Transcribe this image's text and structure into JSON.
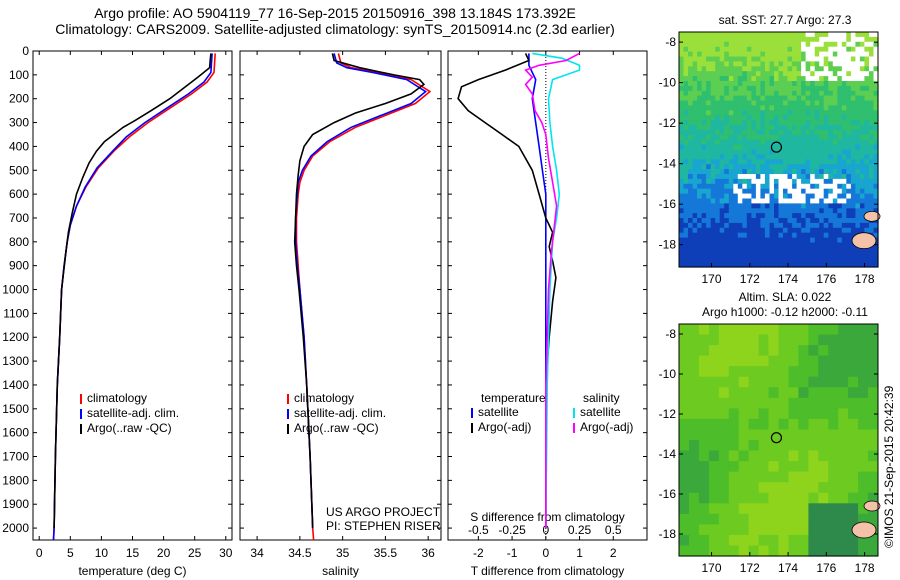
{
  "header": {
    "line1": "Argo profile: AO 5904119_77 16-Sep-2015 20150916_398 13.184S 173.392E",
    "line2": "Climatology: CARS2009. Satellite-adjusted climatology: synTS_20150914.nc (2.3d earlier)"
  },
  "colors": {
    "climatology": "#ff0000",
    "satellite": "#0000ff",
    "argo": "#000000",
    "salinity_satellite": "#00e5ee",
    "salinity_argo": "#ff00ff"
  },
  "chart_data": [
    {
      "type": "line",
      "panel": "temperature",
      "xlabel": "temperature (deg C)",
      "ylabel": "",
      "xlim": [
        -1,
        31
      ],
      "ylim": [
        2050,
        0
      ],
      "xticks": [
        0,
        5,
        10,
        15,
        20,
        25,
        30
      ],
      "xtick_labels": [
        "0",
        "5",
        "10",
        "15",
        "20",
        "25",
        "30"
      ],
      "yticks": [
        0,
        100,
        200,
        300,
        400,
        500,
        600,
        700,
        800,
        900,
        1000,
        1100,
        1200,
        1300,
        1400,
        1500,
        1600,
        1700,
        1800,
        1900,
        2000
      ],
      "ytick_labels": [
        "0",
        "100",
        "200",
        "300",
        "400",
        "500",
        "600",
        "700",
        "800",
        "900",
        "1000",
        "1100",
        "1200",
        "1300",
        "1400",
        "1500",
        "1600",
        "1700",
        "1800",
        "1900",
        "2000"
      ],
      "legend": [
        "climatology",
        "satellite-adj. clim.",
        "Argo(..raw -QC)"
      ],
      "series": [
        {
          "name": "climatology",
          "color_key": "climatology",
          "points": [
            [
              28.3,
              10
            ],
            [
              28.2,
              50
            ],
            [
              28.1,
              90
            ],
            [
              27.0,
              130
            ],
            [
              24.5,
              180
            ],
            [
              21.0,
              240
            ],
            [
              17.5,
              300
            ],
            [
              14.5,
              360
            ],
            [
              12.0,
              420
            ],
            [
              9.5,
              490
            ],
            [
              7.5,
              570
            ],
            [
              6.0,
              650
            ],
            [
              5.0,
              730
            ],
            [
              4.5,
              800
            ],
            [
              4.0,
              900
            ],
            [
              3.6,
              1000
            ],
            [
              3.3,
              1200
            ],
            [
              2.9,
              1400
            ],
            [
              2.6,
              1700
            ],
            [
              2.4,
              2000
            ],
            [
              2.3,
              2050
            ]
          ]
        },
        {
          "name": "satellite-adj. clim.",
          "color_key": "satellite",
          "points": [
            [
              27.8,
              10
            ],
            [
              27.7,
              50
            ],
            [
              27.6,
              90
            ],
            [
              26.5,
              130
            ],
            [
              24.0,
              180
            ],
            [
              20.5,
              240
            ],
            [
              17.0,
              300
            ],
            [
              14.0,
              360
            ],
            [
              11.8,
              420
            ],
            [
              9.3,
              490
            ],
            [
              7.4,
              570
            ],
            [
              6.0,
              650
            ],
            [
              5.0,
              730
            ],
            [
              4.5,
              800
            ],
            [
              4.0,
              900
            ],
            [
              3.6,
              1000
            ],
            [
              3.3,
              1200
            ],
            [
              2.9,
              1400
            ],
            [
              2.6,
              1700
            ],
            [
              2.4,
              2000
            ],
            [
              2.3,
              2050
            ]
          ]
        },
        {
          "name": "Argo(..raw -QC)",
          "color_key": "argo",
          "points": [
            [
              27.6,
              10
            ],
            [
              27.5,
              40
            ],
            [
              27.4,
              70
            ],
            [
              25.5,
              110
            ],
            [
              23.5,
              150
            ],
            [
              21.0,
              200
            ],
            [
              18.0,
              250
            ],
            [
              15.5,
              290
            ],
            [
              13.5,
              320
            ],
            [
              12.0,
              350
            ],
            [
              10.5,
              380
            ],
            [
              9.2,
              420
            ],
            [
              8.0,
              470
            ],
            [
              7.0,
              530
            ],
            [
              6.0,
              600
            ],
            [
              5.3,
              680
            ],
            [
              4.7,
              760
            ],
            [
              4.3,
              840
            ],
            [
              3.9,
              930
            ],
            [
              3.6,
              1000
            ],
            [
              3.3,
              1200
            ],
            [
              2.9,
              1400
            ],
            [
              2.6,
              1700
            ],
            [
              2.4,
              2000
            ]
          ]
        }
      ]
    },
    {
      "type": "line",
      "panel": "salinity",
      "xlabel": "salinity",
      "xlim": [
        33.8,
        36.15
      ],
      "ylim": [
        2050,
        0
      ],
      "xticks": [
        34,
        34.5,
        35,
        35.5,
        36
      ],
      "xtick_labels": [
        "34",
        "34.5",
        "35",
        "35.5",
        "36"
      ],
      "legend": [
        "climatology",
        "satellite-adj. clim.",
        "Argo(..raw -QC)"
      ],
      "annotation": [
        "US ARGO PROJECT",
        "PI: STEPHEN RISER"
      ],
      "series": [
        {
          "name": "climatology",
          "color_key": "climatology",
          "points": [
            [
              34.95,
              10
            ],
            [
              34.98,
              50
            ],
            [
              35.1,
              70
            ],
            [
              35.4,
              90
            ],
            [
              35.8,
              120
            ],
            [
              36.02,
              170
            ],
            [
              35.85,
              220
            ],
            [
              35.5,
              270
            ],
            [
              35.15,
              320
            ],
            [
              34.85,
              380
            ],
            [
              34.65,
              440
            ],
            [
              34.55,
              500
            ],
            [
              34.5,
              550
            ],
            [
              34.48,
              600
            ],
            [
              34.46,
              700
            ],
            [
              34.46,
              800
            ],
            [
              34.48,
              900
            ],
            [
              34.5,
              1000
            ],
            [
              34.55,
              1200
            ],
            [
              34.58,
              1400
            ],
            [
              34.62,
              1700
            ],
            [
              34.65,
              2000
            ],
            [
              34.66,
              2050
            ]
          ]
        },
        {
          "name": "satellite-adj. clim.",
          "color_key": "satellite",
          "points": [
            [
              34.9,
              10
            ],
            [
              34.93,
              50
            ],
            [
              35.05,
              70
            ],
            [
              35.35,
              90
            ],
            [
              35.75,
              120
            ],
            [
              35.97,
              170
            ],
            [
              35.8,
              220
            ],
            [
              35.45,
              270
            ],
            [
              35.1,
              320
            ],
            [
              34.82,
              380
            ],
            [
              34.63,
              440
            ],
            [
              34.53,
              500
            ],
            [
              34.48,
              550
            ],
            [
              34.47,
              600
            ],
            [
              34.45,
              700
            ],
            [
              34.45,
              800
            ],
            [
              34.47,
              900
            ],
            [
              34.5,
              1000
            ],
            [
              34.55,
              1200
            ],
            [
              34.58,
              1400
            ],
            [
              34.62,
              1700
            ],
            [
              34.65,
              2000
            ]
          ]
        },
        {
          "name": "Argo(..raw -QC)",
          "color_key": "argo",
          "points": [
            [
              34.88,
              10
            ],
            [
              34.9,
              40
            ],
            [
              35.2,
              70
            ],
            [
              35.6,
              100
            ],
            [
              35.9,
              120
            ],
            [
              35.95,
              140
            ],
            [
              35.8,
              180
            ],
            [
              35.5,
              220
            ],
            [
              35.15,
              260
            ],
            [
              34.9,
              300
            ],
            [
              34.65,
              350
            ],
            [
              34.55,
              400
            ],
            [
              34.5,
              460
            ],
            [
              34.48,
              520
            ],
            [
              34.46,
              600
            ],
            [
              34.45,
              700
            ],
            [
              34.44,
              800
            ],
            [
              34.46,
              900
            ],
            [
              34.49,
              1000
            ],
            [
              34.54,
              1200
            ],
            [
              34.58,
              1400
            ],
            [
              34.62,
              1700
            ],
            [
              34.65,
              2000
            ]
          ]
        }
      ]
    },
    {
      "type": "line",
      "panel": "difference",
      "xlabel": "T difference from climatology",
      "xlabel_top": "S difference from climatology",
      "xlim": [
        -2.9,
        3.0
      ],
      "ylim": [
        2050,
        0
      ],
      "xticks": [
        -2,
        -1,
        0,
        1,
        2
      ],
      "xtick_labels": [
        "-2",
        "-1",
        "0",
        "1",
        "2"
      ],
      "xticks_top": [
        -0.5,
        -0.25,
        0,
        0.25,
        0.5
      ],
      "xtick_labels_top": [
        "-0.5",
        "-0.25",
        "0",
        "0.25",
        "0.5"
      ],
      "s_scale": 4,
      "legend": {
        "temperature": [
          "satellite",
          "Argo(-adj)"
        ],
        "salinity": [
          "satellite",
          "Argo(-adj)"
        ],
        "headers": [
          "temperature",
          "salinity"
        ]
      },
      "series": [
        {
          "name": "satellite",
          "group": "temperature",
          "color_key": "satellite",
          "points": [
            [
              -0.5,
              10
            ],
            [
              -0.5,
              60
            ],
            [
              -0.3,
              120
            ],
            [
              -0.4,
              200
            ],
            [
              -0.3,
              300
            ],
            [
              -0.2,
              400
            ],
            [
              -0.1,
              500
            ],
            [
              0.0,
              600
            ],
            [
              0.0,
              700
            ],
            [
              0.0,
              800
            ],
            [
              0.0,
              1000
            ],
            [
              0.0,
              1400
            ],
            [
              0.0,
              2000
            ]
          ]
        },
        {
          "name": "Argo(-adj)",
          "group": "temperature",
          "color_key": "argo",
          "points": [
            [
              -0.6,
              10
            ],
            [
              -0.5,
              40
            ],
            [
              -1.2,
              80
            ],
            [
              -2.0,
              120
            ],
            [
              -2.5,
              150
            ],
            [
              -2.6,
              200
            ],
            [
              -2.3,
              250
            ],
            [
              -1.8,
              300
            ],
            [
              -1.3,
              350
            ],
            [
              -0.8,
              400
            ],
            [
              -0.4,
              500
            ],
            [
              -0.2,
              600
            ],
            [
              0.0,
              700
            ],
            [
              0.2,
              760
            ],
            [
              0.1,
              820
            ],
            [
              0.2,
              880
            ],
            [
              0.3,
              950
            ],
            [
              0.2,
              1050
            ],
            [
              0.1,
              1200
            ],
            [
              0.0,
              1400
            ],
            [
              0.0,
              1700
            ],
            [
              0.0,
              2000
            ]
          ]
        },
        {
          "name": "satellite",
          "group": "salinity",
          "color_key": "salinity_satellite",
          "points": [
            [
              -0.1,
              10
            ],
            [
              0.12,
              30
            ],
            [
              0.25,
              60
            ],
            [
              0.25,
              80
            ],
            [
              0.05,
              120
            ],
            [
              0.02,
              200
            ],
            [
              0.03,
              300
            ],
            [
              0.05,
              400
            ],
            [
              0.08,
              500
            ],
            [
              0.1,
              600
            ],
            [
              0.08,
              700
            ],
            [
              0.05,
              800
            ],
            [
              0.03,
              1000
            ],
            [
              0.01,
              1400
            ],
            [
              0.0,
              2000
            ]
          ]
        },
        {
          "name": "Argo(-adj)",
          "group": "salinity",
          "color_key": "salinity_argo",
          "points": [
            [
              0.25,
              10
            ],
            [
              0.15,
              40
            ],
            [
              -0.05,
              60
            ],
            [
              -0.15,
              80
            ],
            [
              -0.1,
              110
            ],
            [
              -0.15,
              140
            ],
            [
              -0.1,
              180
            ],
            [
              -0.08,
              250
            ],
            [
              -0.03,
              300
            ],
            [
              0.0,
              350
            ],
            [
              0.02,
              450
            ],
            [
              0.05,
              550
            ],
            [
              0.08,
              650
            ],
            [
              0.06,
              750
            ],
            [
              0.04,
              850
            ],
            [
              0.02,
              1000
            ],
            [
              0.01,
              1200
            ],
            [
              0.0,
              1400
            ],
            [
              0.0,
              2000
            ]
          ]
        }
      ]
    },
    {
      "type": "heatmap",
      "panel": "sst_map",
      "title": "sat. SST: 27.7 Argo: 27.3",
      "xlim": [
        168.3,
        178.7
      ],
      "ylim": [
        -19.1,
        -7.5
      ],
      "xticks": [
        170,
        172,
        174,
        176,
        178
      ],
      "xtick_labels": [
        "170",
        "172",
        "174",
        "176",
        "178"
      ],
      "yticks": [
        -8,
        -10,
        -12,
        -14,
        -16,
        -18
      ],
      "ytick_labels": [
        "-8",
        "-10",
        "-12",
        "-14",
        "-16",
        "-18"
      ],
      "marker": {
        "lon": 173.392,
        "lat": -13.184
      }
    },
    {
      "type": "heatmap",
      "panel": "sla_map",
      "title_lines": [
        "Altim. SLA: 0.022",
        "Argo h1000: -0.12 h2000: -0.11"
      ],
      "xlim": [
        168.3,
        178.7
      ],
      "ylim": [
        -19.1,
        -7.5
      ],
      "xticks": [
        170,
        172,
        174,
        176,
        178
      ],
      "xtick_labels": [
        "170",
        "172",
        "174",
        "176",
        "178"
      ],
      "yticks": [
        -8,
        -10,
        -12,
        -14,
        -16,
        -18
      ],
      "ytick_labels": [
        "-8",
        "-10",
        "-12",
        "-14",
        "-16",
        "-18"
      ],
      "marker": {
        "lon": 173.392,
        "lat": -13.184
      }
    }
  ],
  "credit": "©IMOS 21-Sep-2015 20:42:39"
}
